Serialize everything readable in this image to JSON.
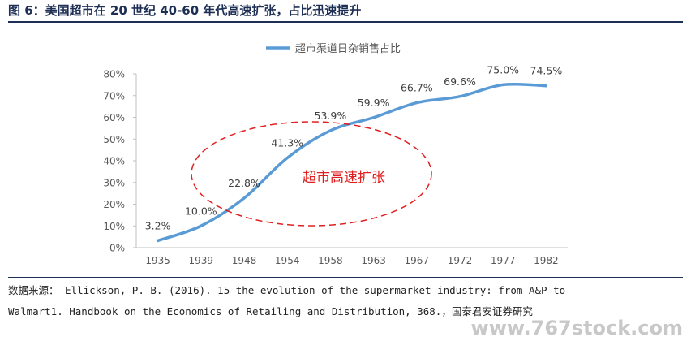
{
  "figure": {
    "title": "图 6：美国超市在 20 世纪 40-60 年代高速扩张，占比迅速提升",
    "source_line1": "数据来源： Ellickson, P. B. (2016). 15 the evolution of the supermarket industry: from A&P to",
    "source_line2": "Walmart1. Handbook on the Economics of Retailing and Distribution, 368.，国泰君安证券研究",
    "watermark": "www.767stock.com"
  },
  "chart_data": {
    "type": "line",
    "categories": [
      "1935",
      "1939",
      "1948",
      "1954",
      "1958",
      "1963",
      "1967",
      "1972",
      "1977",
      "1982"
    ],
    "series": [
      {
        "name": "超市渠道日杂销售占比",
        "values": [
          3.2,
          10.0,
          22.8,
          41.3,
          53.9,
          59.9,
          66.7,
          69.6,
          75.0,
          74.5
        ],
        "labels": [
          "3.2%",
          "10.0%",
          "22.8%",
          "41.3%",
          "53.9%",
          "59.9%",
          "66.7%",
          "69.6%",
          "75.0%",
          "74.5%"
        ],
        "color": "#5b9bd5"
      }
    ],
    "y_ticks": [
      "0%",
      "10%",
      "20%",
      "30%",
      "40%",
      "50%",
      "60%",
      "70%",
      "80%"
    ],
    "ylim": [
      0,
      80
    ],
    "grid": false,
    "legend_position": "top-center",
    "annotation": {
      "text": "超市高速扩张",
      "color": "#e02020",
      "shape": "dashed-ellipse"
    }
  }
}
